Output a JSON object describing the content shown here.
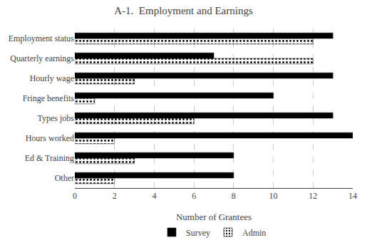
{
  "chart_data": {
    "type": "bar",
    "orientation": "horizontal",
    "title": "A-1.  Employment and Earnings",
    "categories": [
      "Employment status",
      "Quarterly earnings",
      "Hourly wage",
      "Fringe benefits",
      "Types jobs",
      "Hours worked",
      "Ed & Training",
      "Other"
    ],
    "series": [
      {
        "name": "Survey",
        "color": "#000000",
        "values": [
          13,
          7,
          13,
          10,
          13,
          14,
          8,
          8
        ]
      },
      {
        "name": "Admin",
        "color": "#ffff00",
        "values": [
          12,
          12,
          3,
          1,
          6,
          2,
          3,
          2
        ]
      }
    ],
    "xlabel": "Number of Grantees",
    "xlim": [
      0,
      14
    ],
    "xticks": [
      0,
      2,
      4,
      6,
      8,
      10,
      12,
      14
    ],
    "grid": true,
    "legend": "bottom"
  }
}
